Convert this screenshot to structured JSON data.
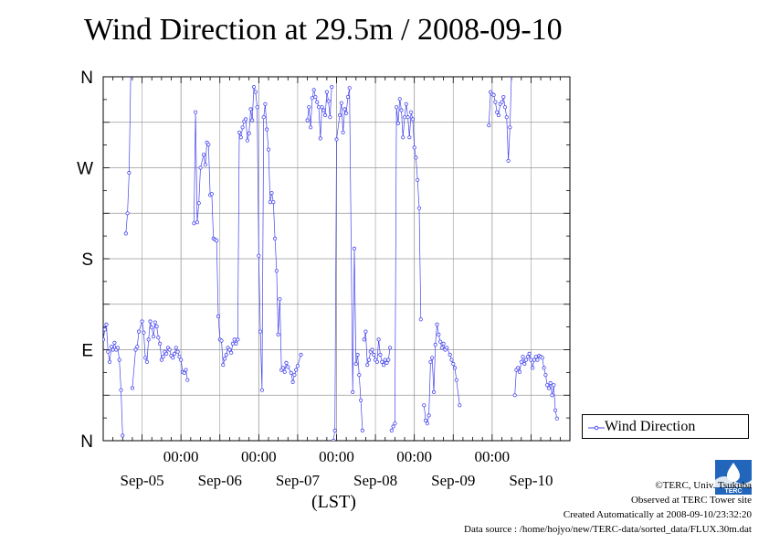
{
  "title": "Wind Direction at 29.5m / 2008-09-10",
  "xlabel": "(LST)",
  "legend_label": "Wind Direction",
  "footer": {
    "copyright": "©TERC, Univ. Tsukuba",
    "observed": "Observed at TERC Tower site",
    "created": "Created Automatically at 2008-09-10/23:32:20",
    "source": "Data source : /home/hojyo/new/TERC-data/sorted_data/FLUX.30m.dat"
  },
  "logo_text": "TERC",
  "colors": {
    "series": "#4444ee",
    "grid": "#999999",
    "logo": "#2266bb"
  },
  "chart_data": {
    "type": "line",
    "title": "Wind Direction at 29.5m / 2008-09-10",
    "xlabel": "(LST)",
    "ylabel": "",
    "y_unit": "degrees (0 = N, 90 = E, 180 = S, 270 = W, 360 = N)",
    "ylim": [
      0,
      360
    ],
    "xlim_hours": [
      0,
      144
    ],
    "x_unit": "hours since 2008-09-04 12:00 LST",
    "grid": true,
    "legend": "right",
    "y_ticks": [
      {
        "value": 0,
        "label": "N"
      },
      {
        "value": 90,
        "label": "E"
      },
      {
        "value": 180,
        "label": "S"
      },
      {
        "value": 270,
        "label": "W"
      },
      {
        "value": 360,
        "label": "N"
      }
    ],
    "x_ticks": [
      {
        "value": 24,
        "time": "00:00",
        "date": "Sep-05"
      },
      {
        "value": 48,
        "time": "00:00",
        "date": "Sep-06"
      },
      {
        "value": 72,
        "time": "00:00",
        "date": "Sep-07"
      },
      {
        "value": 96,
        "time": "00:00",
        "date": "Sep-08"
      },
      {
        "value": 120,
        "time": "00:00",
        "date": "Sep-09"
      }
    ],
    "x_date_labels": [
      "Sep-05",
      "Sep-06",
      "Sep-07",
      "Sep-08",
      "Sep-09",
      "Sep-10"
    ],
    "series": [
      {
        "name": "Wind Direction",
        "segments": [
          [
            [
              0,
              100
            ],
            [
              0.5,
              110
            ],
            [
              1,
              115
            ],
            [
              1.5,
              88
            ],
            [
              2,
              78
            ],
            [
              2.5,
              93
            ],
            [
              3,
              90
            ],
            [
              3.5,
              97
            ],
            [
              4,
              90
            ],
            [
              4.5,
              92
            ],
            [
              5,
              80
            ],
            [
              5.5,
              50
            ],
            [
              6,
              5
            ]
          ],
          [
            [
              7,
              205
            ],
            [
              7.5,
              225
            ],
            [
              8,
              265
            ],
            [
              8.5,
              365
            ]
          ],
          [
            [
              9,
              52
            ],
            [
              10,
              90
            ],
            [
              10.5,
              93
            ],
            [
              11,
              108
            ],
            [
              12,
              118
            ],
            [
              12.5,
              107
            ],
            [
              13,
              82
            ],
            [
              13.5,
              78
            ],
            [
              14,
              100
            ],
            [
              14.5,
              118
            ],
            [
              15,
              112
            ],
            [
              15.5,
              103
            ],
            [
              16,
              117
            ],
            [
              16.5,
              113
            ],
            [
              17,
              102
            ],
            [
              17.5,
              96
            ],
            [
              18,
              80
            ],
            [
              18.5,
              83
            ],
            [
              19,
              88
            ],
            [
              19.5,
              86
            ],
            [
              20,
              92
            ],
            [
              20.5,
              90
            ],
            [
              21,
              84
            ],
            [
              21.5,
              82
            ],
            [
              22,
              86
            ],
            [
              22.5,
              92
            ],
            [
              23,
              88
            ],
            [
              23.5,
              83
            ],
            [
              24,
              80
            ],
            [
              24.5,
              68
            ],
            [
              25,
              67
            ],
            [
              25.5,
              70
            ],
            [
              26,
              60
            ]
          ],
          [
            [
              28,
              215
            ],
            [
              28.5,
              325
            ],
            [
              29,
              216
            ],
            [
              29.5,
              235
            ],
            [
              30,
              270
            ],
            [
              31,
              283
            ],
            [
              31.5,
              273
            ],
            [
              32,
              295
            ],
            [
              32.5,
              293
            ],
            [
              33,
              243
            ],
            [
              33.5,
              244
            ],
            [
              34,
              200
            ],
            [
              34.5,
              199
            ],
            [
              35,
              198
            ],
            [
              35.5,
              123
            ],
            [
              36,
              100
            ],
            [
              36.5,
              99
            ],
            [
              37,
              75
            ],
            [
              37.5,
              81
            ],
            [
              38,
              85
            ],
            [
              38.5,
              92
            ],
            [
              39,
              90
            ],
            [
              39.5,
              87
            ],
            [
              40,
              96
            ],
            [
              40.5,
              100
            ],
            [
              41,
              96
            ],
            [
              41.5,
              100
            ],
            [
              42,
              305
            ],
            [
              42.5,
              300
            ],
            [
              43,
              310
            ],
            [
              43.5,
              316
            ],
            [
              44,
              318
            ],
            [
              44.5,
              297
            ],
            [
              45,
              304
            ],
            [
              45.5,
              328
            ],
            [
              46,
              317
            ],
            [
              46.5,
              350
            ],
            [
              47,
              345
            ],
            [
              47.5,
              330
            ],
            [
              48,
              183
            ],
            [
              48.5,
              108
            ],
            [
              49,
              50
            ],
            [
              49.5,
              320
            ],
            [
              50,
              333
            ],
            [
              50.5,
              308
            ],
            [
              51,
              288
            ],
            [
              51.5,
              236
            ],
            [
              52,
              245
            ],
            [
              52.5,
              236
            ],
            [
              53,
              200
            ],
            [
              53.5,
              168
            ],
            [
              54,
              105
            ],
            [
              54.5,
              140
            ],
            [
              55,
              70
            ],
            [
              55.5,
              72
            ],
            [
              56,
              68
            ],
            [
              56.5,
              77
            ],
            [
              57,
              73
            ],
            [
              58,
              67
            ],
            [
              58.5,
              58
            ],
            [
              59,
              65
            ],
            [
              59.5,
              70
            ],
            [
              60,
              74
            ],
            [
              61,
              85
            ]
          ],
          [
            [
              63,
              317
            ],
            [
              63.5,
              330
            ],
            [
              64,
              310
            ],
            [
              64.5,
              339
            ],
            [
              65,
              347
            ],
            [
              65.5,
              340
            ],
            [
              66,
              335
            ],
            [
              66.5,
              330
            ],
            [
              67,
              299
            ],
            [
              67.5,
              330
            ],
            [
              68,
              327
            ],
            [
              68.5,
              322
            ],
            [
              69,
              345
            ],
            [
              69.5,
              336
            ],
            [
              70,
              320
            ],
            [
              70.5,
              350
            ]
          ],
          [
            [
              71,
              0
            ],
            [
              71.5,
              10
            ],
            [
              72,
              298
            ],
            [
              73,
              322
            ],
            [
              73.5,
              334
            ],
            [
              74,
              305
            ],
            [
              74.5,
              328
            ],
            [
              75,
              324
            ],
            [
              75.5,
              340
            ],
            [
              76,
              349
            ],
            [
              77,
              48
            ],
            [
              77.5,
              190
            ],
            [
              78,
              76
            ],
            [
              78.5,
              85
            ],
            [
              79,
              65
            ],
            [
              79.5,
              40
            ],
            [
              80,
              10
            ]
          ],
          [
            [
              80.5,
              100
            ],
            [
              81,
              108
            ],
            [
              81.5,
              75
            ],
            [
              82,
              80
            ],
            [
              82.5,
              88
            ],
            [
              83,
              90
            ],
            [
              83.5,
              85
            ],
            [
              84,
              80
            ],
            [
              84.5,
              78
            ],
            [
              85,
              100
            ],
            [
              85.5,
              85
            ],
            [
              86,
              78
            ],
            [
              86.5,
              75
            ],
            [
              87,
              80
            ],
            [
              87.5,
              77
            ],
            [
              88,
              80
            ],
            [
              88.5,
              92
            ]
          ],
          [
            [
              89,
              10
            ],
            [
              89.5,
              14
            ],
            [
              90,
              17
            ],
            [
              90.5,
              330
            ],
            [
              91,
              314
            ],
            [
              91.5,
              338
            ],
            [
              92,
              327
            ],
            [
              92.5,
              300
            ],
            [
              93,
              320
            ],
            [
              93.5,
              333
            ],
            [
              94,
              320
            ],
            [
              94.5,
              300
            ],
            [
              95,
              325
            ],
            [
              95.5,
              318
            ],
            [
              96,
              290
            ],
            [
              96.5,
              280
            ],
            [
              97,
              258
            ],
            [
              97.5,
              230
            ],
            [
              98,
              120
            ]
          ],
          [
            [
              99,
              35
            ],
            [
              99.5,
              20
            ],
            [
              100,
              17
            ],
            [
              100.5,
              25
            ],
            [
              101,
              78
            ],
            [
              101.5,
              82
            ],
            [
              102,
              48
            ],
            [
              102.5,
              95
            ],
            [
              103,
              115
            ],
            [
              103.5,
              105
            ],
            [
              104,
              98
            ],
            [
              104.5,
              92
            ],
            [
              105,
              96
            ],
            [
              105.5,
              90
            ],
            [
              106,
              92
            ],
            [
              107,
              85
            ],
            [
              107.5,
              80
            ],
            [
              108,
              76
            ],
            [
              108.5,
              72
            ],
            [
              109,
              60
            ],
            [
              110,
              35
            ]
          ],
          [
            [
              119,
              312
            ],
            [
              119.5,
              345
            ],
            [
              120,
              343
            ],
            [
              120.5,
              342
            ],
            [
              121,
              335
            ],
            [
              121.5,
              325
            ],
            [
              122,
              322
            ],
            [
              122.5,
              333
            ],
            [
              123,
              335
            ],
            [
              123.5,
              340
            ],
            [
              124,
              330
            ],
            [
              124.5,
              320
            ],
            [
              125,
              277
            ],
            [
              125.5,
              310
            ],
            [
              126,
              365
            ]
          ],
          [
            [
              127,
              45
            ],
            [
              127.5,
              70
            ],
            [
              128,
              72
            ],
            [
              128.5,
              68
            ],
            [
              129,
              78
            ],
            [
              129.5,
              83
            ],
            [
              130,
              76
            ],
            [
              130.5,
              80
            ],
            [
              131,
              83
            ],
            [
              131.5,
              86
            ],
            [
              132,
              80
            ],
            [
              132.5,
              72
            ],
            [
              133,
              80
            ],
            [
              133.5,
              83
            ],
            [
              134,
              80
            ],
            [
              134.5,
              84
            ],
            [
              135,
              83
            ],
            [
              135.5,
              82
            ],
            [
              136,
              72
            ],
            [
              136.5,
              65
            ],
            [
              137,
              55
            ],
            [
              137.5,
              52
            ],
            [
              138,
              57
            ],
            [
              138.5,
              45
            ],
            [
              139,
              55
            ],
            [
              139.5,
              30
            ],
            [
              140,
              22
            ]
          ]
        ]
      }
    ]
  }
}
